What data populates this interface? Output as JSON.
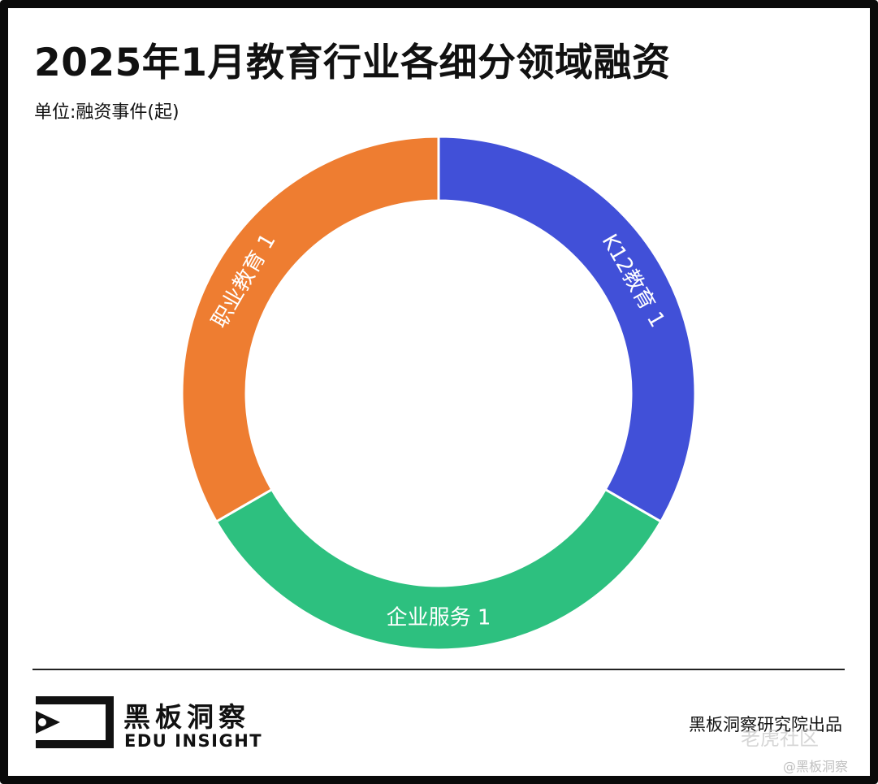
{
  "header": {
    "title": "2025年1月教育行业各细分领域融资",
    "unit": "单位:融资事件(起)"
  },
  "chart_data": {
    "type": "pie",
    "donut": true,
    "categories": [
      "K12教育",
      "企业服务",
      "职业教育"
    ],
    "values": [
      1,
      1,
      1
    ],
    "labels": [
      "K12教育 1",
      "企业服务 1",
      "职业教育 1"
    ],
    "colors": [
      "#4150d8",
      "#2dc07f",
      "#ee7d31"
    ],
    "legend": "none"
  },
  "footer": {
    "brand_cn": "黑板洞察",
    "brand_en": "EDU INSIGHT",
    "credit": "黑板洞察研究院出品",
    "watermark_platform": "老虎社区",
    "watermark_handle": "@黑板洞察"
  }
}
